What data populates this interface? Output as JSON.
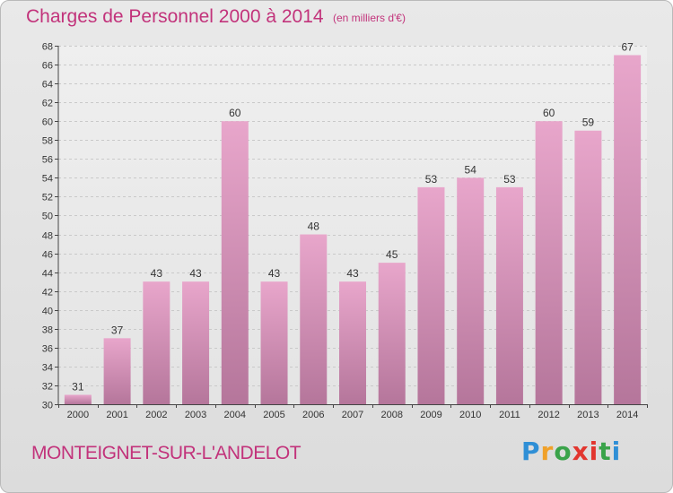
{
  "header": {
    "title": "Charges de Personnel 2000 à 2014",
    "subtitle": "(en milliers d'€)"
  },
  "footer": {
    "commune": "MONTEIGNET-SUR-L'ANDELOT",
    "logo": {
      "letters": [
        "P",
        "r",
        "o",
        "x",
        "i",
        "t",
        "i"
      ],
      "colors": [
        "#2f8fd6",
        "#f0a12a",
        "#3aa34a",
        "#e2362f",
        "#e2362f",
        "#3aa34a",
        "#2f8fd6"
      ]
    }
  },
  "chart_data": {
    "type": "bar",
    "title": "Charges de Personnel 2000 à 2014",
    "subtitle": "(en milliers d'€)",
    "categories": [
      "2000",
      "2001",
      "2002",
      "2003",
      "2004",
      "2005",
      "2006",
      "2007",
      "2008",
      "2009",
      "2010",
      "2011",
      "2012",
      "2013",
      "2014"
    ],
    "values": [
      31,
      37,
      43,
      43,
      60,
      43,
      48,
      43,
      45,
      53,
      54,
      53,
      60,
      59,
      67
    ],
    "ylim": [
      30,
      68
    ],
    "yticks": [
      30,
      32,
      34,
      36,
      38,
      40,
      42,
      44,
      46,
      48,
      50,
      52,
      54,
      56,
      58,
      60,
      62,
      64,
      66,
      68
    ],
    "grid": true,
    "bar_color": "#d682b2"
  }
}
